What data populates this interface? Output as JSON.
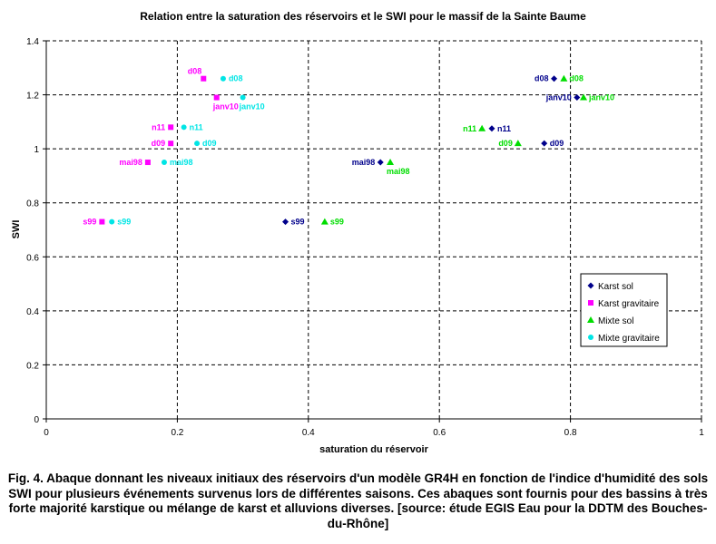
{
  "chart_data": {
    "type": "scatter",
    "title": "Relation entre la saturation des réservoirs et le SWI pour le massif de la Sainte Baume",
    "xlabel": "saturation du réservoir",
    "ylabel": "SWI",
    "xlim": [
      0,
      1
    ],
    "ylim": [
      0,
      1.4
    ],
    "x_ticks": [
      "0",
      "0.2",
      "0.4",
      "0.6",
      "0.8",
      "1"
    ],
    "y_ticks": [
      "0",
      "0.2",
      "0.4",
      "0.6",
      "0.8",
      "1",
      "1.2",
      "1.4"
    ],
    "grid": "dashed",
    "legend_position": "right",
    "series": [
      {
        "name": "Karst sol",
        "color": "#00008b",
        "marker": "diamond",
        "points": [
          {
            "x": 0.775,
            "y": 1.26,
            "label": "d08",
            "label_side": "left"
          },
          {
            "x": 0.81,
            "y": 1.19,
            "label": "janv10",
            "label_side": "left"
          },
          {
            "x": 0.68,
            "y": 1.075,
            "label": "n11",
            "label_side": "right"
          },
          {
            "x": 0.76,
            "y": 1.02,
            "label": "d09",
            "label_side": "right"
          },
          {
            "x": 0.51,
            "y": 0.95,
            "label": "mai98",
            "label_side": "left"
          },
          {
            "x": 0.365,
            "y": 0.73,
            "label": "s99",
            "label_side": "right"
          }
        ]
      },
      {
        "name": "Karst gravitaire",
        "color": "#ff00ff",
        "marker": "square",
        "points": [
          {
            "x": 0.24,
            "y": 1.26,
            "label": "d08",
            "label_side": "above"
          },
          {
            "x": 0.26,
            "y": 1.19,
            "label": "janv10",
            "label_side": "below"
          },
          {
            "x": 0.19,
            "y": 1.08,
            "label": "n11",
            "label_side": "left"
          },
          {
            "x": 0.19,
            "y": 1.02,
            "label": "d09",
            "label_side": "left"
          },
          {
            "x": 0.155,
            "y": 0.95,
            "label": "mai98",
            "label_side": "left"
          },
          {
            "x": 0.085,
            "y": 0.73,
            "label": "s99",
            "label_side": "left"
          }
        ]
      },
      {
        "name": "Mixte sol",
        "color": "#00dd00",
        "marker": "triangle",
        "points": [
          {
            "x": 0.79,
            "y": 1.26,
            "label": "d08",
            "label_side": "right"
          },
          {
            "x": 0.82,
            "y": 1.19,
            "label": "janv10",
            "label_side": "right"
          },
          {
            "x": 0.665,
            "y": 1.075,
            "label": "n11",
            "label_side": "left"
          },
          {
            "x": 0.72,
            "y": 1.02,
            "label": "d09",
            "label_side": "left"
          },
          {
            "x": 0.525,
            "y": 0.95,
            "label": "mai98",
            "label_side": "below"
          },
          {
            "x": 0.425,
            "y": 0.73,
            "label": "s99",
            "label_side": "right"
          }
        ]
      },
      {
        "name": "Mixte gravitaire",
        "color": "#00e5e5",
        "marker": "circle",
        "points": [
          {
            "x": 0.27,
            "y": 1.26,
            "label": "d08",
            "label_side": "right"
          },
          {
            "x": 0.3,
            "y": 1.19,
            "label": "janv10",
            "label_side": "below"
          },
          {
            "x": 0.21,
            "y": 1.08,
            "label": "n11",
            "label_side": "right"
          },
          {
            "x": 0.23,
            "y": 1.02,
            "label": "d09",
            "label_side": "right"
          },
          {
            "x": 0.18,
            "y": 0.95,
            "label": "mai98",
            "label_side": "right"
          },
          {
            "x": 0.1,
            "y": 0.73,
            "label": "s99",
            "label_side": "right"
          }
        ]
      }
    ]
  },
  "caption": "Fig. 4. Abaque donnant les niveaux initiaux des réservoirs d'un modèle GR4H en fonction de l'indice d'humidité des sols SWI pour plusieurs événements survenus lors de différentes saisons. Ces abaques sont fournis pour des bassins à très forte majorité karstique ou mélange de karst et alluvions diverses. [source: étude EGIS Eau pour la DDTM des Bouches-du-Rhône]"
}
